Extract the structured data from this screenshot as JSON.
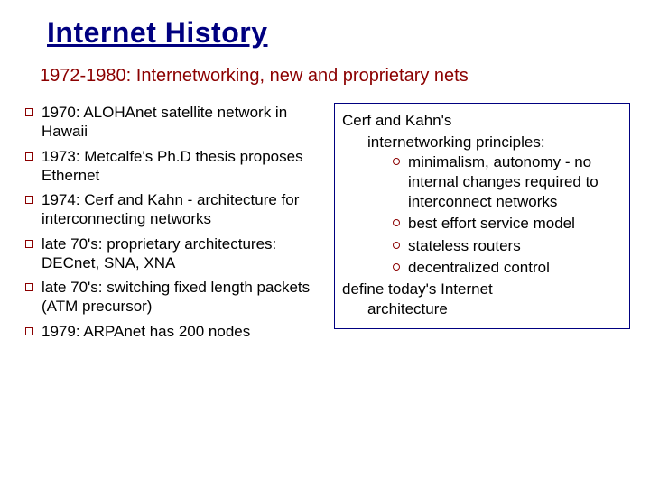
{
  "title": "Internet History",
  "subtitle": "1972-1980: Internetworking, new and proprietary nets",
  "left_bullets": [
    "1970: ALOHAnet satellite network in Hawaii",
    "1973: Metcalfe's Ph.D thesis proposes Ethernet",
    "1974: Cerf and Kahn - architecture for interconnecting networks",
    "late 70's: proprietary architectures: DECnet, SNA, XNA",
    "late 70's: switching fixed length packets (ATM precursor)",
    "1979: ARPAnet has 200 nodes"
  ],
  "box": {
    "intro_line1": "Cerf and Kahn's",
    "intro_line2": "internetworking principles:",
    "subitems": [
      "minimalism, autonomy - no internal changes required to interconnect networks",
      "best effort service model",
      "stateless routers",
      "decentralized control"
    ],
    "footer_line1": "define today's Internet",
    "footer_line2": "architecture"
  },
  "colors": {
    "title": "#000080",
    "subtitle": "#8b0000",
    "bullet_border": "#8b0000",
    "box_border": "#000080",
    "text": "#000000",
    "background": "#ffffff"
  }
}
